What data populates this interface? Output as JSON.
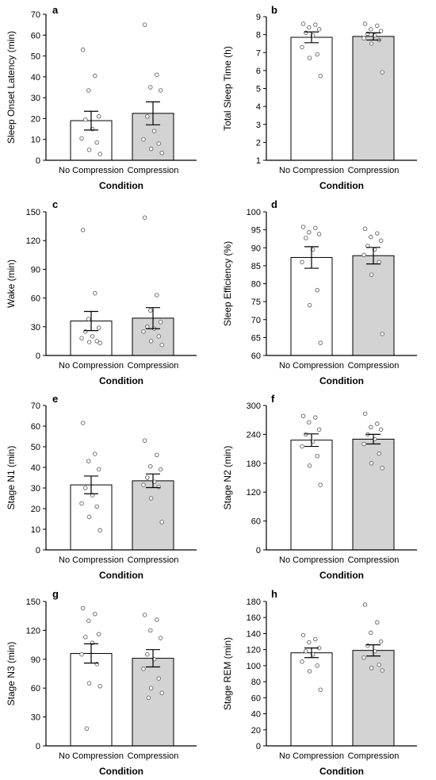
{
  "chart_data": [
    {
      "type": "bar",
      "panel": "a",
      "categories": [
        "No Compression",
        "Compression"
      ],
      "xlabel": "Condition",
      "ylabel": "Sleep Onset Latency (min)",
      "ylim": [
        0,
        70
      ],
      "yticks": [
        0,
        10,
        20,
        30,
        40,
        50,
        60,
        70
      ],
      "bar_colors": [
        "#ffffff",
        "#d3d3d3"
      ],
      "values": [
        19,
        22.5
      ],
      "sem": [
        4.5,
        5.5
      ],
      "points": [
        [
          53,
          40.5,
          33.5,
          21,
          19.5,
          15,
          10.5,
          8.5,
          5,
          3
        ],
        [
          65,
          41,
          35,
          33.5,
          21,
          14,
          10,
          8,
          5.5,
          3.5
        ]
      ]
    },
    {
      "type": "bar",
      "panel": "b",
      "categories": [
        "No Compression",
        "Compression"
      ],
      "xlabel": "Condition",
      "ylabel": "Total Sleep Time (h)",
      "ylim": [
        1,
        9
      ],
      "yticks": [
        1,
        2,
        3,
        4,
        5,
        6,
        7,
        8,
        9
      ],
      "bar_colors": [
        "#ffffff",
        "#d3d3d3"
      ],
      "values": [
        7.85,
        7.9
      ],
      "sem": [
        0.3,
        0.2
      ],
      "points": [
        [
          8.6,
          8.55,
          8.4,
          8.3,
          8.1,
          7.95,
          7.3,
          6.9,
          6.7,
          5.7
        ],
        [
          8.6,
          8.5,
          8.3,
          8.2,
          8.05,
          7.95,
          7.8,
          7.7,
          7.5,
          5.9
        ]
      ]
    },
    {
      "type": "bar",
      "panel": "c",
      "categories": [
        "No Compression",
        "Compression"
      ],
      "xlabel": "Condition",
      "ylabel": "Wake (min)",
      "ylim": [
        0,
        150
      ],
      "yticks": [
        0,
        30,
        60,
        90,
        120,
        150
      ],
      "bar_colors": [
        "#ffffff",
        "#d3d3d3"
      ],
      "values": [
        36,
        39
      ],
      "sem": [
        10,
        11
      ],
      "points": [
        [
          131,
          65,
          38,
          29,
          25,
          20,
          18,
          15,
          14,
          13
        ],
        [
          144,
          63,
          47,
          35,
          30,
          28,
          25,
          20,
          15,
          11
        ]
      ]
    },
    {
      "type": "bar",
      "panel": "d",
      "categories": [
        "No Compression",
        "Compression"
      ],
      "xlabel": "Condition",
      "ylabel": "Sleep Efficiency (%)",
      "ylim": [
        60,
        100
      ],
      "yticks": [
        60,
        65,
        70,
        75,
        80,
        85,
        90,
        95,
        100
      ],
      "bar_colors": [
        "#ffffff",
        "#d3d3d3"
      ],
      "values": [
        87.3,
        87.8
      ],
      "sem": [
        3,
        2.3
      ],
      "points": [
        [
          95.8,
          95.5,
          94.3,
          93.8,
          92.7,
          89.5,
          86,
          78.2,
          74,
          63.5
        ],
        [
          95.3,
          94,
          93,
          92,
          90.5,
          89.5,
          88,
          86,
          82.5,
          66
        ]
      ]
    },
    {
      "type": "bar",
      "panel": "e",
      "categories": [
        "No Compression",
        "Compression"
      ],
      "xlabel": "Condition",
      "ylabel": "Stage N1 (min)",
      "ylim": [
        0,
        70
      ],
      "yticks": [
        0,
        10,
        20,
        30,
        40,
        50,
        60,
        70
      ],
      "bar_colors": [
        "#ffffff",
        "#d3d3d3"
      ],
      "values": [
        31.5,
        33.5
      ],
      "sem": [
        4.3,
        3.3
      ],
      "points": [
        [
          61.5,
          46.5,
          43,
          39,
          30,
          26.5,
          22.5,
          21,
          16,
          9.5
        ],
        [
          53,
          46,
          40.5,
          39,
          35,
          33,
          31.5,
          30.5,
          25,
          13.5
        ]
      ]
    },
    {
      "type": "bar",
      "panel": "f",
      "categories": [
        "No Compression",
        "Compression"
      ],
      "xlabel": "Condition",
      "ylabel": "Stage N2 (min)",
      "ylim": [
        0,
        300
      ],
      "yticks": [
        0,
        60,
        120,
        180,
        240,
        300
      ],
      "bar_colors": [
        "#ffffff",
        "#d3d3d3"
      ],
      "values": [
        228,
        230
      ],
      "sem": [
        13,
        10
      ],
      "points": [
        [
          278,
          275,
          265,
          250,
          240,
          225,
          215,
          195,
          175,
          135
        ],
        [
          283,
          262,
          255,
          250,
          240,
          230,
          220,
          200,
          180,
          170
        ]
      ]
    },
    {
      "type": "bar",
      "panel": "g",
      "categories": [
        "No Compression",
        "Compression"
      ],
      "xlabel": "Condition",
      "ylabel": "Stage N3 (min)",
      "ylim": [
        0,
        150
      ],
      "yticks": [
        0,
        30,
        60,
        90,
        120,
        150
      ],
      "bar_colors": [
        "#ffffff",
        "#d3d3d3"
      ],
      "values": [
        96,
        91
      ],
      "sem": [
        10,
        9
      ],
      "points": [
        [
          143,
          137,
          130,
          116,
          113,
          107,
          95,
          85,
          65,
          62,
          18
        ],
        [
          136,
          131,
          120,
          112,
          95,
          90,
          80,
          70,
          60,
          55,
          50
        ]
      ]
    },
    {
      "type": "bar",
      "panel": "h",
      "categories": [
        "No Compression",
        "Compression"
      ],
      "xlabel": "Condition",
      "ylabel": "Stage REM (min)",
      "ylim": [
        0,
        180
      ],
      "yticks": [
        0,
        20,
        40,
        60,
        80,
        100,
        120,
        140,
        160,
        180
      ],
      "bar_colors": [
        "#ffffff",
        "#d3d3d3"
      ],
      "values": [
        116,
        119
      ],
      "sem": [
        6,
        7
      ],
      "points": [
        [
          138,
          133,
          129,
          122,
          118,
          114,
          105,
          100,
          93,
          70
        ],
        [
          176,
          154,
          141,
          130,
          125,
          118,
          110,
          101,
          97,
          94
        ]
      ]
    }
  ]
}
